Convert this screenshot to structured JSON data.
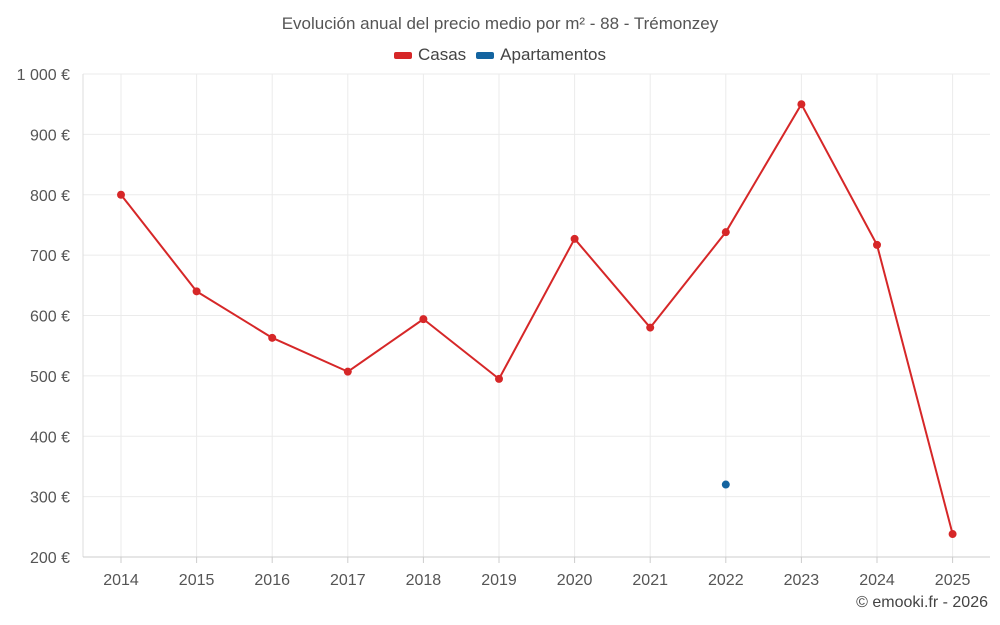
{
  "chart_data": {
    "type": "line",
    "title": "Evolución anual del precio medio por m² - 88 - Trémonzey",
    "xlabel": "",
    "ylabel": "",
    "categories": [
      "2014",
      "2015",
      "2016",
      "2017",
      "2018",
      "2019",
      "2020",
      "2021",
      "2022",
      "2023",
      "2024",
      "2025"
    ],
    "y_ticks": [
      "1 000 €",
      "900 €",
      "800 €",
      "700 €",
      "600 €",
      "500 €",
      "400 €",
      "300 €",
      "200 €"
    ],
    "y_tick_values": [
      1000,
      900,
      800,
      700,
      600,
      500,
      400,
      300,
      200
    ],
    "ylim": [
      200,
      1000
    ],
    "grid": true,
    "legend_position": "top-center",
    "series": [
      {
        "name": "Casas",
        "color": "#d62728",
        "values": [
          800,
          640,
          563,
          507,
          594,
          495,
          727,
          580,
          738,
          950,
          717,
          238
        ]
      },
      {
        "name": "Apartamentos",
        "color": "#1464a0",
        "values": [
          null,
          null,
          null,
          null,
          null,
          null,
          null,
          null,
          320,
          null,
          null,
          null
        ]
      }
    ]
  },
  "credit": "© emooki.fr - 2026"
}
